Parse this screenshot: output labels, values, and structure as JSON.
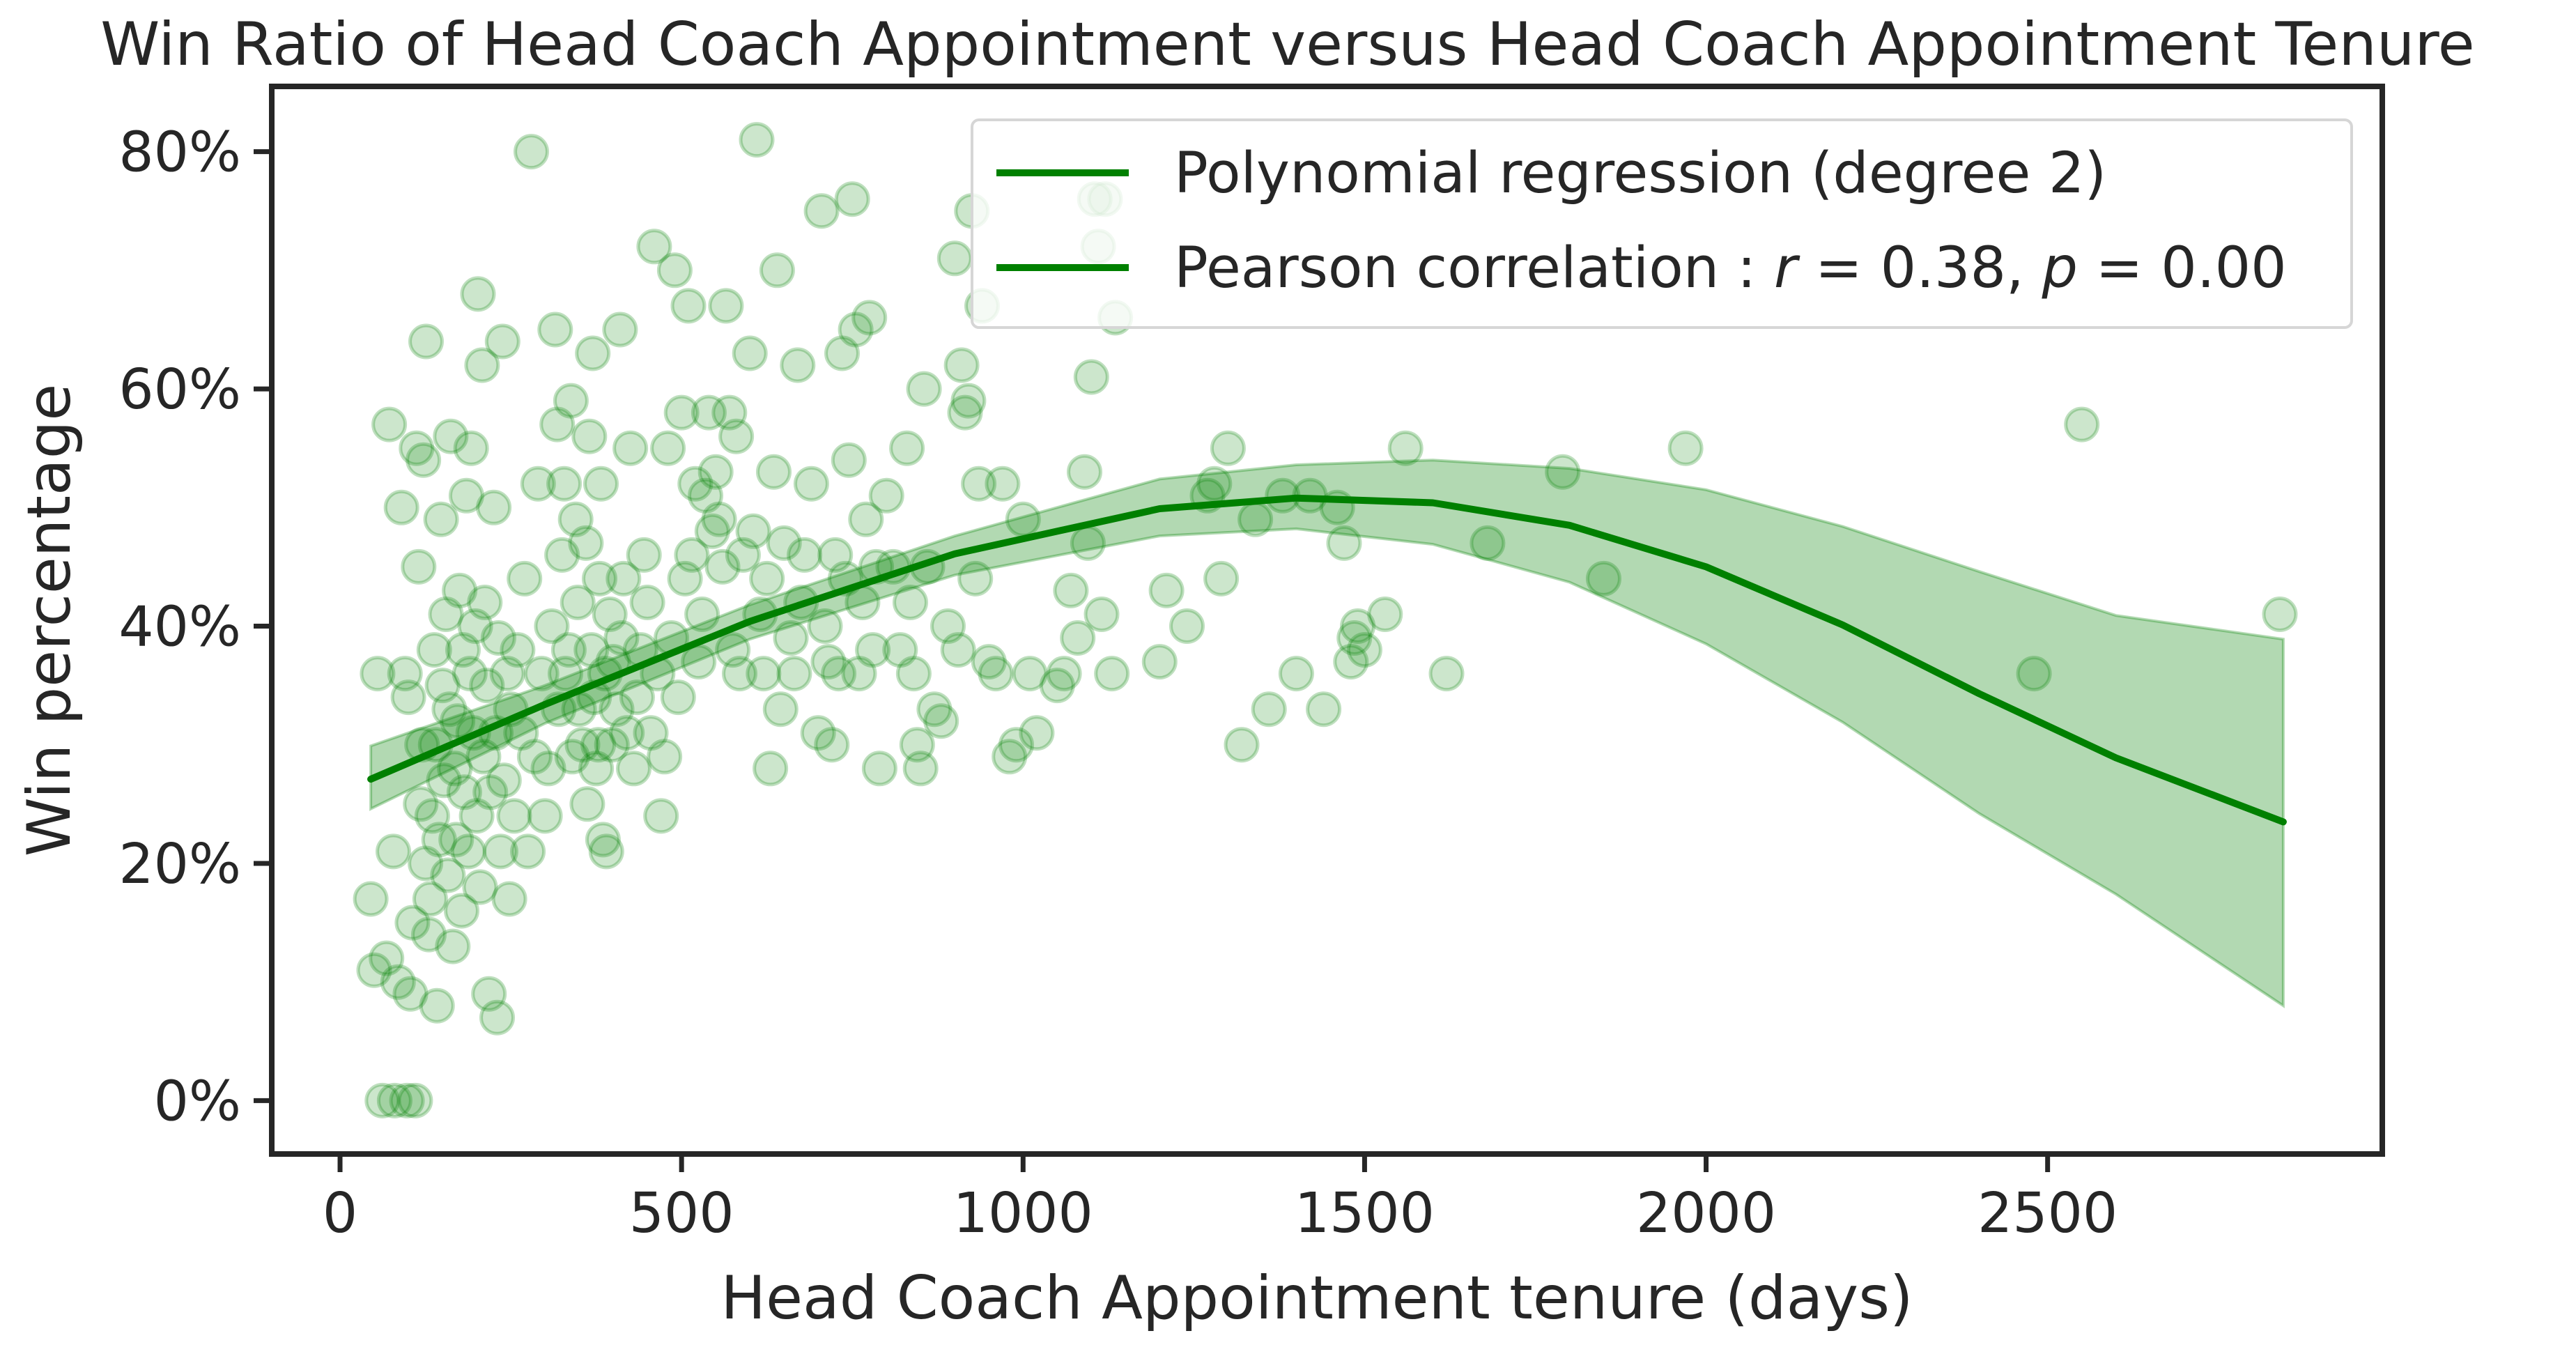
{
  "chart_data": {
    "type": "scatter",
    "title": "Win Ratio of Head Coach Appointment versus Head Coach Appointment Tenure",
    "xlabel": "Head Coach Appointment tenure (days)",
    "ylabel": "Win percentage",
    "xlim": [
      -100,
      2990
    ],
    "ylim": [
      -4.5,
      85.5
    ],
    "xticks": [
      0,
      500,
      1000,
      1500,
      2000,
      2500
    ],
    "xtick_labels": [
      "0",
      "500",
      "1000",
      "1500",
      "2000",
      "2500"
    ],
    "yticks": [
      0,
      20,
      40,
      60,
      80
    ],
    "ytick_labels": [
      "0%",
      "20%",
      "40%",
      "60%",
      "80%"
    ],
    "grid": false,
    "legend_position": "top-right",
    "legend": [
      {
        "label": "Polynomial regression (degree 2)"
      },
      {
        "label_prefix": "Pearson correlation : ",
        "r_symbol": "r",
        "r_value": " = 0.38, ",
        "p_symbol": "p",
        "p_value": " = 0.00"
      }
    ],
    "colors": {
      "points": "#008000",
      "fit_line": "#008000",
      "band": "#008000"
    },
    "regression": {
      "degree": 2,
      "x_range": [
        45,
        2845
      ],
      "x": [
        45,
        300,
        600,
        900,
        1200,
        1400,
        1600,
        1800,
        2000,
        2200,
        2400,
        2600,
        2845
      ],
      "y": [
        27.1,
        33.4,
        40.4,
        46.1,
        49.9,
        50.8,
        50.4,
        48.5,
        45.0,
        40.1,
        34.3,
        28.9,
        23.5
      ],
      "ci_upper": [
        29.9,
        35.0,
        41.8,
        47.6,
        52.4,
        53.6,
        54.0,
        53.3,
        51.5,
        48.4,
        44.6,
        40.9,
        38.9
      ],
      "ci_lower": [
        24.6,
        31.8,
        38.9,
        44.3,
        47.6,
        48.2,
        46.9,
        43.7,
        38.5,
        31.9,
        24.2,
        17.4,
        8.0
      ]
    },
    "points": [
      [
        45,
        17
      ],
      [
        50,
        11
      ],
      [
        55,
        36
      ],
      [
        62,
        0
      ],
      [
        68,
        12
      ],
      [
        72,
        57
      ],
      [
        78,
        21
      ],
      [
        80,
        0
      ],
      [
        85,
        10
      ],
      [
        90,
        50
      ],
      [
        95,
        36
      ],
      [
        98,
        0
      ],
      [
        100,
        34
      ],
      [
        103,
        9
      ],
      [
        106,
        15
      ],
      [
        110,
        0
      ],
      [
        112,
        55
      ],
      [
        115,
        45
      ],
      [
        118,
        25
      ],
      [
        120,
        30
      ],
      [
        122,
        54
      ],
      [
        125,
        20
      ],
      [
        126,
        64
      ],
      [
        130,
        14
      ],
      [
        132,
        17
      ],
      [
        135,
        24
      ],
      [
        138,
        38
      ],
      [
        140,
        30
      ],
      [
        142,
        8
      ],
      [
        145,
        22
      ],
      [
        148,
        49
      ],
      [
        150,
        35
      ],
      [
        152,
        27
      ],
      [
        155,
        41
      ],
      [
        158,
        19
      ],
      [
        160,
        33
      ],
      [
        162,
        56
      ],
      [
        165,
        13
      ],
      [
        168,
        28
      ],
      [
        170,
        22
      ],
      [
        172,
        32
      ],
      [
        175,
        43
      ],
      [
        178,
        16
      ],
      [
        180,
        38
      ],
      [
        182,
        26
      ],
      [
        185,
        51
      ],
      [
        188,
        21
      ],
      [
        190,
        36
      ],
      [
        192,
        55
      ],
      [
        195,
        31
      ],
      [
        198,
        40
      ],
      [
        200,
        24
      ],
      [
        202,
        68
      ],
      [
        205,
        18
      ],
      [
        208,
        62
      ],
      [
        210,
        29
      ],
      [
        212,
        42
      ],
      [
        215,
        35
      ],
      [
        218,
        9
      ],
      [
        220,
        26
      ],
      [
        225,
        50
      ],
      [
        228,
        31
      ],
      [
        230,
        7
      ],
      [
        232,
        39
      ],
      [
        235,
        21
      ],
      [
        238,
        64
      ],
      [
        240,
        27
      ],
      [
        245,
        36
      ],
      [
        248,
        17
      ],
      [
        250,
        33
      ],
      [
        255,
        24
      ],
      [
        260,
        38
      ],
      [
        265,
        31
      ],
      [
        270,
        44
      ],
      [
        275,
        21
      ],
      [
        280,
        80
      ],
      [
        285,
        29
      ],
      [
        290,
        52
      ],
      [
        295,
        36
      ],
      [
        300,
        24
      ],
      [
        305,
        28
      ],
      [
        310,
        40
      ],
      [
        315,
        65
      ],
      [
        318,
        57
      ],
      [
        320,
        33
      ],
      [
        325,
        46
      ],
      [
        328,
        52
      ],
      [
        330,
        36
      ],
      [
        335,
        38
      ],
      [
        338,
        59
      ],
      [
        340,
        29
      ],
      [
        345,
        49
      ],
      [
        348,
        42
      ],
      [
        350,
        33
      ],
      [
        355,
        30
      ],
      [
        360,
        47
      ],
      [
        362,
        25
      ],
      [
        365,
        56
      ],
      [
        368,
        38
      ],
      [
        370,
        63
      ],
      [
        372,
        34
      ],
      [
        375,
        28
      ],
      [
        378,
        30
      ],
      [
        380,
        44
      ],
      [
        382,
        52
      ],
      [
        385,
        22
      ],
      [
        388,
        36
      ],
      [
        390,
        21
      ],
      [
        395,
        41
      ],
      [
        398,
        30
      ],
      [
        400,
        37
      ],
      [
        405,
        33
      ],
      [
        410,
        65
      ],
      [
        412,
        39
      ],
      [
        415,
        44
      ],
      [
        420,
        31
      ],
      [
        425,
        55
      ],
      [
        430,
        28
      ],
      [
        435,
        34
      ],
      [
        440,
        38
      ],
      [
        445,
        46
      ],
      [
        450,
        42
      ],
      [
        455,
        31
      ],
      [
        460,
        72
      ],
      [
        465,
        36
      ],
      [
        470,
        24
      ],
      [
        475,
        29
      ],
      [
        480,
        55
      ],
      [
        485,
        39
      ],
      [
        490,
        70
      ],
      [
        495,
        34
      ],
      [
        500,
        58
      ],
      [
        505,
        44
      ],
      [
        510,
        67
      ],
      [
        515,
        46
      ],
      [
        520,
        52
      ],
      [
        525,
        37
      ],
      [
        530,
        41
      ],
      [
        535,
        51
      ],
      [
        540,
        58
      ],
      [
        545,
        48
      ],
      [
        550,
        53
      ],
      [
        555,
        49
      ],
      [
        560,
        45
      ],
      [
        565,
        67
      ],
      [
        570,
        58
      ],
      [
        575,
        38
      ],
      [
        580,
        56
      ],
      [
        585,
        36
      ],
      [
        590,
        46
      ],
      [
        600,
        63
      ],
      [
        605,
        48
      ],
      [
        610,
        81
      ],
      [
        615,
        41
      ],
      [
        620,
        36
      ],
      [
        625,
        44
      ],
      [
        630,
        28
      ],
      [
        635,
        53
      ],
      [
        640,
        70
      ],
      [
        645,
        33
      ],
      [
        650,
        47
      ],
      [
        660,
        39
      ],
      [
        665,
        36
      ],
      [
        670,
        62
      ],
      [
        675,
        42
      ],
      [
        680,
        46
      ],
      [
        690,
        52
      ],
      [
        700,
        31
      ],
      [
        705,
        75
      ],
      [
        710,
        40
      ],
      [
        715,
        37
      ],
      [
        720,
        30
      ],
      [
        725,
        46
      ],
      [
        730,
        36
      ],
      [
        735,
        63
      ],
      [
        740,
        44
      ],
      [
        745,
        54
      ],
      [
        750,
        76
      ],
      [
        755,
        65
      ],
      [
        760,
        36
      ],
      [
        765,
        42
      ],
      [
        770,
        49
      ],
      [
        775,
        66
      ],
      [
        780,
        38
      ],
      [
        785,
        45
      ],
      [
        790,
        28
      ],
      [
        800,
        51
      ],
      [
        810,
        45
      ],
      [
        820,
        38
      ],
      [
        830,
        55
      ],
      [
        835,
        42
      ],
      [
        840,
        36
      ],
      [
        845,
        30
      ],
      [
        850,
        28
      ],
      [
        855,
        60
      ],
      [
        860,
        45
      ],
      [
        870,
        33
      ],
      [
        880,
        32
      ],
      [
        890,
        40
      ],
      [
        900,
        71
      ],
      [
        905,
        38
      ],
      [
        910,
        62
      ],
      [
        915,
        58
      ],
      [
        920,
        59
      ],
      [
        925,
        75
      ],
      [
        930,
        44
      ],
      [
        935,
        52
      ],
      [
        940,
        67
      ],
      [
        950,
        37
      ],
      [
        960,
        36
      ],
      [
        970,
        52
      ],
      [
        980,
        29
      ],
      [
        990,
        30
      ],
      [
        1000,
        49
      ],
      [
        1010,
        36
      ],
      [
        1020,
        31
      ],
      [
        1050,
        35
      ],
      [
        1060,
        36
      ],
      [
        1070,
        43
      ],
      [
        1080,
        39
      ],
      [
        1090,
        53
      ],
      [
        1095,
        47
      ],
      [
        1100,
        61
      ],
      [
        1105,
        76
      ],
      [
        1110,
        72
      ],
      [
        1115,
        41
      ],
      [
        1120,
        76
      ],
      [
        1130,
        36
      ],
      [
        1135,
        66
      ],
      [
        1200,
        37
      ],
      [
        1210,
        43
      ],
      [
        1240,
        40
      ],
      [
        1270,
        51
      ],
      [
        1280,
        52
      ],
      [
        1290,
        44
      ],
      [
        1300,
        55
      ],
      [
        1320,
        30
      ],
      [
        1340,
        49
      ],
      [
        1360,
        33
      ],
      [
        1380,
        51
      ],
      [
        1400,
        36
      ],
      [
        1420,
        51
      ],
      [
        1440,
        33
      ],
      [
        1460,
        50
      ],
      [
        1470,
        47
      ],
      [
        1480,
        37
      ],
      [
        1485,
        39
      ],
      [
        1490,
        40
      ],
      [
        1500,
        38
      ],
      [
        1530,
        41
      ],
      [
        1560,
        55
      ],
      [
        1620,
        36
      ],
      [
        1680,
        47
      ],
      [
        1790,
        53
      ],
      [
        1850,
        44
      ],
      [
        1970,
        55
      ],
      [
        2480,
        36
      ],
      [
        2550,
        57
      ],
      [
        2840,
        41
      ]
    ]
  }
}
